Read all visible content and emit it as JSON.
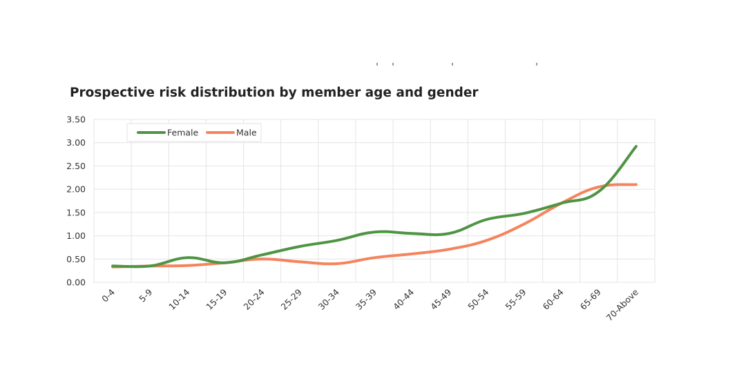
{
  "chart_data": {
    "type": "line",
    "title": "Prospective risk distribution by member age and gender",
    "xlabel": "",
    "ylabel": "",
    "categories": [
      "0-4",
      "5-9",
      "10-14",
      "15-19",
      "20-24",
      "25-29",
      "30-34",
      "35-39",
      "40-44",
      "45-49",
      "50-54",
      "55-59",
      "60-64",
      "65-69",
      "70-Above"
    ],
    "ylim": [
      0,
      3.5
    ],
    "yticks": [
      "0.00",
      "0.50",
      "1.00",
      "1.50",
      "2.00",
      "2.50",
      "3.00",
      "3.50"
    ],
    "grid": true,
    "legend_position": "top-left",
    "series": [
      {
        "name": "Female",
        "color": "#4e9443",
        "values": [
          0.35,
          0.35,
          0.53,
          0.42,
          0.59,
          0.77,
          0.9,
          1.08,
          1.05,
          1.05,
          1.35,
          1.48,
          1.7,
          1.95,
          2.92
        ]
      },
      {
        "name": "Male",
        "color": "#f4845d",
        "values": [
          0.33,
          0.35,
          0.36,
          0.42,
          0.5,
          0.44,
          0.4,
          0.53,
          0.61,
          0.71,
          0.9,
          1.25,
          1.7,
          2.05,
          2.1
        ]
      }
    ]
  }
}
